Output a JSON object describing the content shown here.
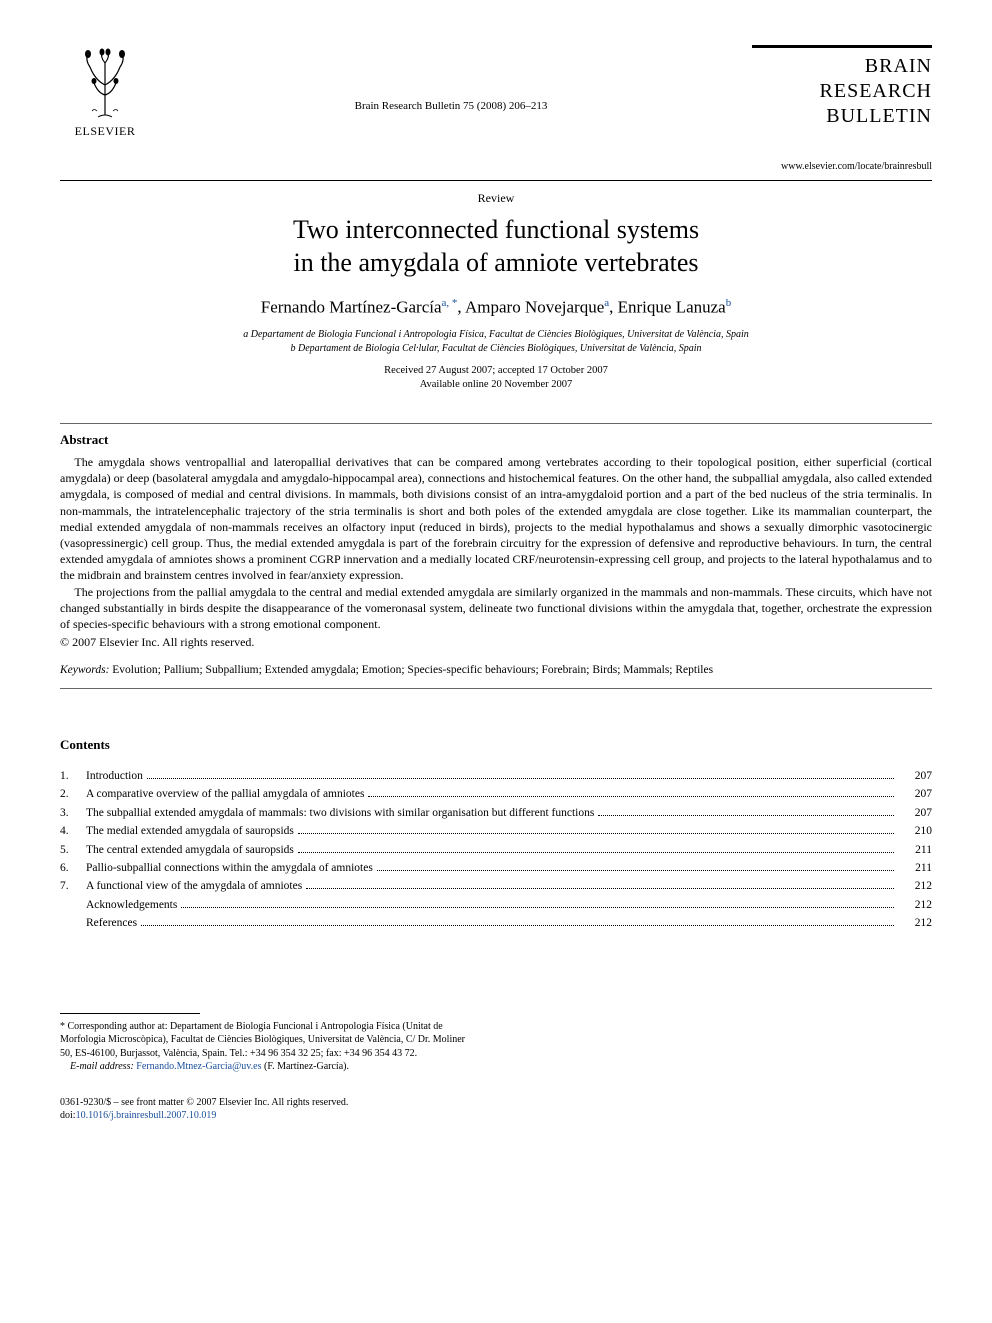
{
  "publisher": {
    "name": "ELSEVIER"
  },
  "journal": {
    "title_line1": "BRAIN",
    "title_line2": "RESEARCH",
    "title_line3": "BULLETIN",
    "url": "www.elsevier.com/locate/brainresbull"
  },
  "citation": "Brain Research Bulletin 75 (2008) 206–213",
  "article_type": "Review",
  "title_line1": "Two interconnected functional systems",
  "title_line2": "in the amygdala of amniote vertebrates",
  "authors": {
    "a1_name": "Fernando Martínez-García",
    "a1_aff": "a,",
    "a1_star": "*",
    "sep1": ", ",
    "a2_name": "Amparo Novejarque",
    "a2_aff": "a",
    "sep2": ", ",
    "a3_name": "Enrique Lanuza",
    "a3_aff": "b"
  },
  "affiliations": {
    "a": "a Departament de Biologia Funcional i Antropologia Física, Facultat de Ciències Biològiques, Universitat de València, Spain",
    "b": "b Departament de Biologia Cel·lular, Facultat de Ciències Biològiques, Universitat de València, Spain"
  },
  "dates": {
    "received_accepted": "Received 27 August 2007; accepted 17 October 2007",
    "online": "Available online 20 November 2007"
  },
  "abstract": {
    "heading": "Abstract",
    "p1": "The amygdala shows ventropallial and lateropallial derivatives that can be compared among vertebrates according to their topological position, either superficial (cortical amygdala) or deep (basolateral amygdala and amygdalo-hippocampal area), connections and histochemical features. On the other hand, the subpallial amygdala, also called extended amygdala, is composed of medial and central divisions. In mammals, both divisions consist of an intra-amygdaloid portion and a part of the bed nucleus of the stria terminalis. In non-mammals, the intratelencephalic trajectory of the stria terminalis is short and both poles of the extended amygdala are close together. Like its mammalian counterpart, the medial extended amygdala of non-mammals receives an olfactory input (reduced in birds), projects to the medial hypothalamus and shows a sexually dimorphic vasotocinergic (vasopressinergic) cell group. Thus, the medial extended amygdala is part of the forebrain circuitry for the expression of defensive and reproductive behaviours. In turn, the central extended amygdala of amniotes shows a prominent CGRP innervation and a medially located CRF/neurotensin-expressing cell group, and projects to the lateral hypothalamus and to the midbrain and brainstem centres involved in fear/anxiety expression.",
    "p2": "The projections from the pallial amygdala to the central and medial extended amygdala are similarly organized in the mammals and non-mammals. These circuits, which have not changed substantially in birds despite the disappearance of the vomeronasal system, delineate two functional divisions within the amygdala that, together, orchestrate the expression of species-specific behaviours with a strong emotional component.",
    "copyright": "© 2007 Elsevier Inc. All rights reserved."
  },
  "keywords": {
    "label": "Keywords:",
    "text": "Evolution; Pallium; Subpallium; Extended amygdala; Emotion; Species-specific behaviours; Forebrain; Birds; Mammals; Reptiles"
  },
  "contents": {
    "heading": "Contents",
    "items": [
      {
        "num": "1.",
        "title": "Introduction",
        "page": "207"
      },
      {
        "num": "2.",
        "title": "A comparative overview of the pallial amygdala of amniotes",
        "page": "207"
      },
      {
        "num": "3.",
        "title": "The subpallial extended amygdala of mammals: two divisions with similar organisation but different functions",
        "page": "207"
      },
      {
        "num": "4.",
        "title": "The medial extended amygdala of sauropsids",
        "page": "210"
      },
      {
        "num": "5.",
        "title": "The central extended amygdala of sauropsids",
        "page": "211"
      },
      {
        "num": "6.",
        "title": "Pallio-subpallial connections within the amygdala of amniotes",
        "page": "211"
      },
      {
        "num": "7.",
        "title": "A functional view of the amygdala of amniotes",
        "page": "212"
      },
      {
        "num": "",
        "title": "Acknowledgements",
        "page": "212"
      },
      {
        "num": "",
        "title": "References",
        "page": "212"
      }
    ]
  },
  "footnote": {
    "corr": "* Corresponding author at: Departament de Biologia Funcional i Antropologia Física (Unitat de Morfologia Microscòpica), Facultat de Ciències Biològiques, Universitat de València, C/ Dr. Moliner 50, ES-46100, Burjassot, València, Spain. Tel.: +34 96 354 32 25; fax: +34 96 354 43 72.",
    "email_label": "E-mail address:",
    "email": "Fernando.Mtnez-Garcia@uv.es",
    "email_person": "(F. Martínez-García)."
  },
  "footer": {
    "line1": "0361-9230/$ – see front matter © 2007 Elsevier Inc. All rights reserved.",
    "doi_label": "doi:",
    "doi": "10.1016/j.brainresbull.2007.10.019"
  }
}
